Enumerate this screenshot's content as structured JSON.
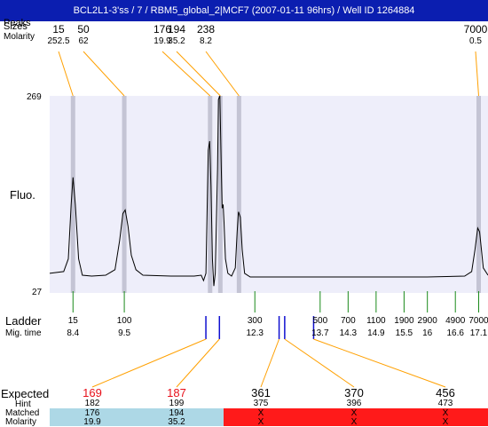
{
  "title": "BCL2L1-3'ss / 7 / RBM5_global_2|MCF7 (2007-01-11 96hrs) / Well ID 1264884",
  "row_labels": {
    "peaks": "Peaks",
    "size": "Sizes",
    "molarity": "Molarity",
    "fluo": "Fluo.",
    "ladder": "Ladder",
    "mig_time": "Mig. time",
    "expected": "Expected",
    "hint": "Hint",
    "matched": "Matched",
    "molarity2": "Molarity"
  },
  "colors": {
    "title_bg": "#0b1eb0",
    "plot_bg": "#eeeefa",
    "peak_band": "#c4c4d4",
    "orange": "#ffa000",
    "green": "#1a8a1a",
    "blue": "#1010d0",
    "matched_ok": "#add8e6",
    "matched_bad": "#ff1a1a",
    "expected_red": "#e8101a"
  },
  "chart_data": {
    "type": "line",
    "y_axis": {
      "top_label": "269",
      "bottom_label": "27"
    },
    "peaks": [
      {
        "size": "15",
        "molarity": "252.5",
        "mig_time": 8.4
      },
      {
        "size": "50",
        "molarity": "62",
        "mig_time": 9.5
      },
      {
        "size": "176",
        "molarity": "19.9",
        "mig_time": 11.34
      },
      {
        "size": "194",
        "molarity": "35.2",
        "mig_time": 11.56
      },
      {
        "size": "238",
        "molarity": "8.2",
        "mig_time": 11.96
      },
      {
        "size": "7000",
        "molarity": "0.5",
        "mig_time": 17.1
      }
    ],
    "ladder": [
      {
        "size": "15",
        "time": "8.4"
      },
      {
        "size": "100",
        "time": "9.5"
      },
      {
        "size": "300",
        "time": "12.3"
      },
      {
        "size": "500",
        "time": "13.7"
      },
      {
        "size": "700",
        "time": "14.3"
      },
      {
        "size": "1100",
        "time": "14.9"
      },
      {
        "size": "1900",
        "time": "15.5"
      },
      {
        "size": "2900",
        "time": "16"
      },
      {
        "size": "4900",
        "time": "16.6"
      },
      {
        "size": "7000",
        "time": "17.1"
      }
    ],
    "expected": [
      {
        "expected": "169",
        "hint": "182",
        "matched": "176",
        "molarity": "19.9",
        "ok": true,
        "hint_time": 11.25
      },
      {
        "expected": "187",
        "hint": "199",
        "matched": "194",
        "molarity": "35.2",
        "ok": true,
        "hint_time": 11.54
      },
      {
        "expected": "361",
        "hint": "375",
        "matched": "X",
        "molarity": "X",
        "ok": false,
        "hint_time": 12.82
      },
      {
        "expected": "370",
        "hint": "396",
        "matched": "X",
        "molarity": "X",
        "ok": false,
        "hint_time": 12.94
      },
      {
        "expected": "456",
        "hint": "473",
        "matched": "X",
        "molarity": "X",
        "ok": false,
        "hint_time": 13.56
      }
    ],
    "trace": [
      [
        7.9,
        0.02
      ],
      [
        8.2,
        0.03
      ],
      [
        8.3,
        0.1
      ],
      [
        8.36,
        0.4
      ],
      [
        8.4,
        0.55
      ],
      [
        8.45,
        0.4
      ],
      [
        8.52,
        0.1
      ],
      [
        8.6,
        0.01
      ],
      [
        8.8,
        0.005
      ],
      [
        9.1,
        0.01
      ],
      [
        9.3,
        0.04
      ],
      [
        9.4,
        0.2
      ],
      [
        9.47,
        0.35
      ],
      [
        9.52,
        0.37
      ],
      [
        9.58,
        0.28
      ],
      [
        9.65,
        0.12
      ],
      [
        9.75,
        0.04
      ],
      [
        9.9,
        0.01
      ],
      [
        10.5,
        0.005
      ],
      [
        11.0,
        0.005
      ],
      [
        11.15,
        0.01
      ],
      [
        11.2,
        -0.02
      ],
      [
        11.25,
        0.02
      ],
      [
        11.3,
        0.7
      ],
      [
        11.33,
        0.75
      ],
      [
        11.36,
        0.5
      ],
      [
        11.39,
        0.1
      ],
      [
        11.42,
        -0.05
      ],
      [
        11.45,
        0.02
      ],
      [
        11.5,
        0.6
      ],
      [
        11.52,
        0.98
      ],
      [
        11.55,
        1.0
      ],
      [
        11.58,
        0.6
      ],
      [
        11.6,
        0.38
      ],
      [
        11.62,
        0.4
      ],
      [
        11.64,
        0.3
      ],
      [
        11.67,
        0.1
      ],
      [
        11.72,
        0.02
      ],
      [
        11.8,
        0.005
      ],
      [
        11.88,
        0.05
      ],
      [
        11.92,
        0.25
      ],
      [
        11.95,
        0.36
      ],
      [
        11.99,
        0.33
      ],
      [
        12.03,
        0.15
      ],
      [
        12.08,
        0.02
      ],
      [
        12.2,
        0.0
      ],
      [
        13.0,
        0.0
      ],
      [
        14.0,
        0.0
      ],
      [
        15.0,
        0.0
      ],
      [
        16.0,
        0.0
      ],
      [
        16.8,
        0.005
      ],
      [
        16.95,
        0.03
      ],
      [
        17.02,
        0.15
      ],
      [
        17.08,
        0.27
      ],
      [
        17.12,
        0.25
      ],
      [
        17.2,
        0.05
      ],
      [
        17.3,
        0.01
      ]
    ]
  }
}
